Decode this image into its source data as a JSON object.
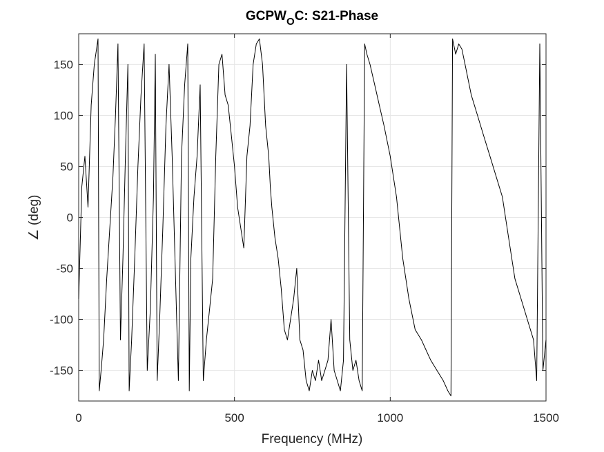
{
  "chart_data": {
    "type": "line",
    "title_main": "GCPW",
    "title_sub": "O",
    "title_rest": "C: S21-Phase",
    "xlabel": "Frequency (MHz)",
    "ylabel": "∠ (deg)",
    "xlim": [
      0,
      1500
    ],
    "ylim": [
      -180,
      180
    ],
    "xticks": [
      0,
      500,
      1000,
      1500
    ],
    "yticks": [
      -150,
      -100,
      -50,
      0,
      50,
      100,
      150
    ],
    "xtick_labels": [
      "0",
      "500",
      "1000",
      "1500"
    ],
    "ytick_labels": [
      "-150",
      "-100",
      "-50",
      "0",
      "50",
      "100",
      "150"
    ],
    "grid": true,
    "line_color": "#000000",
    "grid_color": "#e6e6e6",
    "series": [
      {
        "x": [
          0,
          10,
          20,
          30,
          40,
          50,
          62,
          66,
          72,
          80,
          90,
          100,
          110,
          118,
          126,
          134,
          142,
          150,
          158,
          162,
          170,
          180,
          190,
          200,
          210,
          220,
          230,
          240,
          246,
          252,
          260,
          270,
          280,
          290,
          300,
          310,
          320,
          330,
          340,
          350,
          355,
          360,
          370,
          380,
          390,
          400,
          410,
          420,
          430,
          440,
          450,
          460,
          470,
          480,
          490,
          500,
          510,
          520,
          530,
          540,
          550,
          560,
          570,
          580,
          590,
          600,
          610,
          615,
          620,
          630,
          640,
          650,
          660,
          670,
          680,
          690,
          700,
          710,
          720,
          730,
          740,
          750,
          760,
          770,
          780,
          790,
          800,
          810,
          820,
          830,
          840,
          850,
          860,
          870,
          880,
          890,
          900,
          910,
          918,
          925,
          935,
          950,
          965,
          980,
          1000,
          1020,
          1040,
          1060,
          1080,
          1100,
          1115,
          1130,
          1150,
          1170,
          1185,
          1195,
          1200,
          1210,
          1220,
          1230,
          1240,
          1250,
          1260,
          1280,
          1300,
          1320,
          1340,
          1360,
          1380,
          1400,
          1420,
          1440,
          1460,
          1470,
          1480,
          1490,
          1500
        ],
        "y": [
          -80,
          30,
          60,
          10,
          110,
          150,
          175,
          -170,
          -150,
          -120,
          -60,
          -10,
          40,
          100,
          170,
          -120,
          -40,
          60,
          150,
          -170,
          -120,
          -40,
          50,
          120,
          170,
          -150,
          -90,
          20,
          160,
          -160,
          -100,
          -10,
          90,
          150,
          60,
          -50,
          -160,
          60,
          130,
          170,
          -170,
          -40,
          20,
          60,
          130,
          -160,
          -120,
          -90,
          -60,
          60,
          150,
          160,
          120,
          110,
          80,
          50,
          10,
          -10,
          -30,
          60,
          90,
          150,
          170,
          175,
          150,
          90,
          60,
          30,
          10,
          -20,
          -40,
          -70,
          -110,
          -120,
          -100,
          -80,
          -50,
          -120,
          -130,
          -160,
          -170,
          -150,
          -160,
          -140,
          -160,
          -150,
          -140,
          -100,
          -150,
          -160,
          -170,
          -140,
          150,
          -120,
          -150,
          -140,
          -160,
          -170,
          170,
          160,
          150,
          130,
          110,
          90,
          60,
          20,
          -40,
          -80,
          -110,
          -120,
          -130,
          -140,
          -150,
          -160,
          -170,
          -175,
          175,
          160,
          170,
          165,
          150,
          135,
          120,
          100,
          80,
          60,
          40,
          20,
          -20,
          -60,
          -80,
          -100,
          -120,
          -160,
          170,
          -150,
          -120
        ]
      }
    ]
  }
}
